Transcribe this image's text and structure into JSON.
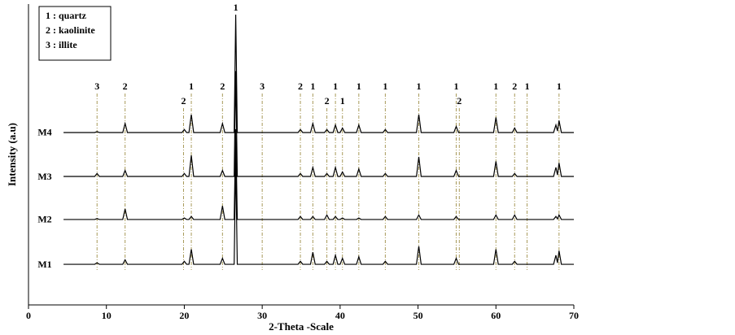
{
  "chart_data": {
    "type": "line",
    "x_label": "2-Theta -Scale",
    "y_label": "Intensity (a.u)",
    "legend_text": [
      "1 : quartz",
      "2 : kaolinite",
      "3 : illite"
    ],
    "xlim": [
      0,
      70
    ],
    "xticks": [
      0,
      10,
      20,
      30,
      40,
      50,
      60,
      70
    ],
    "ylim": [
      0,
      100
    ],
    "x": [
      4.5,
      8.5,
      8.8,
      9.1,
      12.1,
      12.4,
      12.7,
      19.7,
      20.0,
      20.3,
      20.6,
      20.9,
      21.2,
      24.6,
      24.9,
      25.2,
      26.4,
      26.6,
      26.8,
      34.6,
      34.9,
      35.2,
      36.2,
      36.5,
      36.8,
      38.0,
      38.3,
      38.6,
      39.1,
      39.4,
      39.7,
      40.0,
      40.3,
      40.6,
      42.1,
      42.4,
      42.7,
      45.5,
      45.8,
      46.1,
      49.8,
      50.1,
      50.4,
      54.6,
      54.9,
      55.2,
      59.7,
      60.0,
      60.3,
      62.1,
      62.4,
      62.7,
      67.4,
      67.7,
      67.9,
      68.1,
      68.4,
      70
    ],
    "series": [
      {
        "name": "M1",
        "color": "#000000",
        "values": [
          13.5,
          13.5,
          14.0,
          13.5,
          13.5,
          15.0,
          13.5,
          13.5,
          14.5,
          13.5,
          13.5,
          18.5,
          13.5,
          13.5,
          15.5,
          13.5,
          13.5,
          48.5,
          13.5,
          13.5,
          14.5,
          13.5,
          13.5,
          17.5,
          13.5,
          13.5,
          14.5,
          13.5,
          13.5,
          16.5,
          13.5,
          13.5,
          15.5,
          13.5,
          13.5,
          16.0,
          13.5,
          13.5,
          14.5,
          13.5,
          13.5,
          19.5,
          13.5,
          13.5,
          15.5,
          13.5,
          13.5,
          18.5,
          13.5,
          13.5,
          14.5,
          13.5,
          13.5,
          16.5,
          14.0,
          18.0,
          13.5,
          13.5
        ]
      },
      {
        "name": "M2",
        "color": "#000000",
        "values": [
          28.4,
          28.4,
          28.7,
          28.4,
          28.4,
          31.9,
          28.4,
          28.4,
          28.9,
          28.4,
          28.4,
          29.4,
          28.4,
          28.4,
          32.9,
          28.4,
          28.4,
          58.4,
          28.4,
          28.4,
          29.4,
          28.4,
          28.4,
          29.4,
          28.4,
          28.4,
          29.9,
          28.4,
          28.4,
          29.4,
          28.4,
          28.4,
          28.9,
          28.4,
          28.4,
          28.9,
          28.4,
          28.4,
          29.4,
          28.4,
          28.4,
          29.9,
          28.4,
          28.4,
          29.4,
          28.4,
          28.4,
          29.9,
          28.4,
          28.4,
          29.9,
          28.4,
          28.4,
          29.4,
          28.6,
          29.9,
          28.4,
          28.4
        ]
      },
      {
        "name": "M3",
        "color": "#000000",
        "values": [
          42.7,
          42.7,
          43.7,
          42.7,
          42.7,
          44.7,
          42.7,
          42.7,
          43.7,
          42.7,
          42.7,
          49.7,
          42.7,
          42.7,
          44.7,
          42.7,
          42.7,
          77.7,
          42.7,
          42.7,
          43.7,
          42.7,
          42.7,
          45.7,
          42.7,
          42.7,
          43.7,
          42.7,
          42.7,
          45.7,
          42.7,
          42.7,
          44.2,
          42.7,
          42.7,
          45.2,
          42.7,
          42.7,
          43.7,
          42.7,
          42.7,
          49.2,
          42.7,
          42.7,
          44.7,
          42.7,
          42.7,
          47.7,
          42.7,
          42.7,
          43.7,
          42.7,
          42.7,
          45.7,
          43.2,
          47.2,
          42.7,
          42.7
        ]
      },
      {
        "name": "M4",
        "color": "#000000",
        "values": [
          57.3,
          57.3,
          57.6,
          57.3,
          57.3,
          60.3,
          57.3,
          57.3,
          58.3,
          57.3,
          57.3,
          63.3,
          57.3,
          57.3,
          60.3,
          57.3,
          57.3,
          96.5,
          57.3,
          57.3,
          58.3,
          57.3,
          57.3,
          60.3,
          57.3,
          57.3,
          58.3,
          57.3,
          57.3,
          59.8,
          57.3,
          57.3,
          58.8,
          57.3,
          57.3,
          59.8,
          57.3,
          57.3,
          58.3,
          57.3,
          57.3,
          63.3,
          57.3,
          57.3,
          59.3,
          57.3,
          57.3,
          62.3,
          57.3,
          57.3,
          58.8,
          57.3,
          57.3,
          59.8,
          57.8,
          61.3,
          57.3,
          57.3
        ]
      }
    ],
    "annotations": [
      {
        "x": 8.8,
        "label": "3"
      },
      {
        "x": 12.4,
        "label": "2"
      },
      {
        "x": 19.9,
        "label": "2"
      },
      {
        "x": 20.9,
        "label": "1"
      },
      {
        "x": 24.9,
        "label": "2"
      },
      {
        "x": 26.6,
        "label": "1"
      },
      {
        "x": 30.0,
        "label": "3"
      },
      {
        "x": 34.9,
        "label": "2"
      },
      {
        "x": 36.5,
        "label": "1"
      },
      {
        "x": 38.3,
        "label": "2"
      },
      {
        "x": 39.4,
        "label": "1"
      },
      {
        "x": 40.3,
        "label": "1"
      },
      {
        "x": 42.4,
        "label": "1"
      },
      {
        "x": 45.8,
        "label": "1"
      },
      {
        "x": 50.1,
        "label": "1"
      },
      {
        "x": 54.9,
        "label": "1"
      },
      {
        "x": 55.3,
        "label": "2"
      },
      {
        "x": 60.0,
        "label": "1"
      },
      {
        "x": 62.4,
        "label": "2"
      },
      {
        "x": 64.0,
        "label": "1"
      },
      {
        "x": 68.1,
        "label": "1"
      }
    ]
  }
}
